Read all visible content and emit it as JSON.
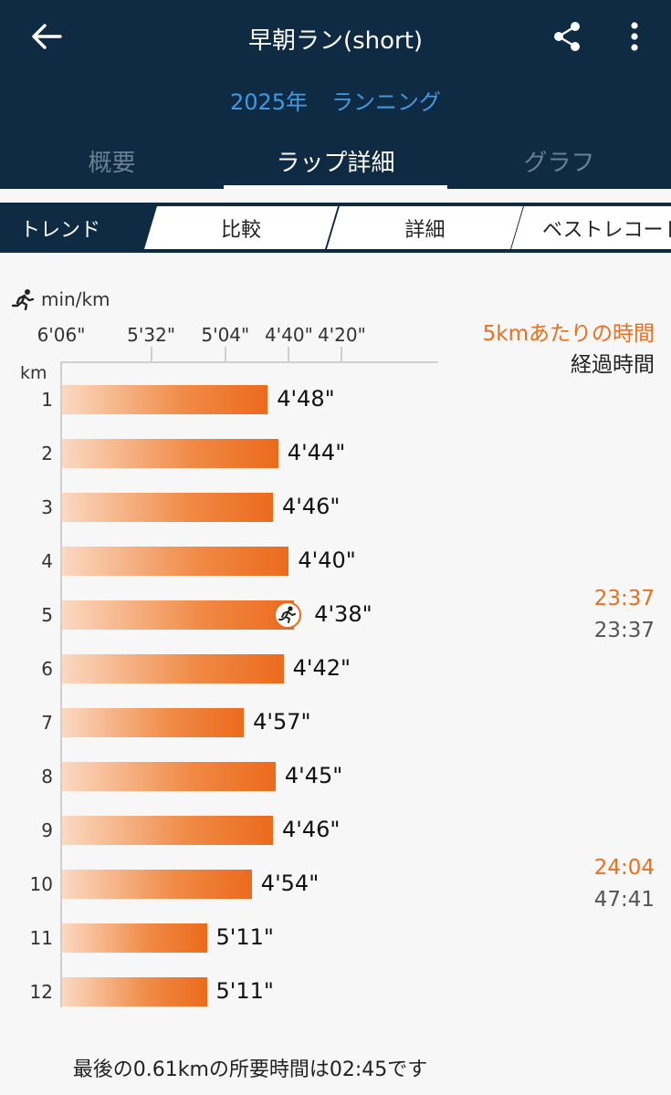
{
  "header": {
    "title": "早朝ラン(short)",
    "subtitle_year": "2025年",
    "subtitle_activity": "ランニング",
    "icons": {
      "back": "arrow-left-icon",
      "share": "share-icon",
      "more": "more-vertical-icon"
    }
  },
  "tabs": [
    {
      "label": "概要",
      "active": false
    },
    {
      "label": "ラップ詳細",
      "active": true
    },
    {
      "label": "グラフ",
      "active": false
    }
  ],
  "segments": [
    {
      "label": "トレンド",
      "active": true
    },
    {
      "label": "比較",
      "active": false
    },
    {
      "label": "詳細",
      "active": false
    },
    {
      "label": "ベストレコード",
      "active": false
    }
  ],
  "chart_data": {
    "type": "bar",
    "orientation": "horizontal",
    "x_unit": "min/km",
    "y_unit": "km",
    "x_ticks": [
      "6'06\"",
      "5'32\"",
      "5'04\"",
      "4'40\"",
      "4'20\""
    ],
    "x_tick_seconds": [
      366,
      332,
      304,
      280,
      260
    ],
    "x_reversed": true,
    "categories": [
      "1",
      "2",
      "3",
      "4",
      "5",
      "6",
      "7",
      "8",
      "9",
      "10",
      "11",
      "12"
    ],
    "values_label": [
      "4'48\"",
      "4'44\"",
      "4'46\"",
      "4'40\"",
      "4'38\"",
      "4'42\"",
      "4'57\"",
      "4'45\"",
      "4'46\"",
      "4'54\"",
      "5'11\"",
      "5'11\""
    ],
    "values_seconds": [
      288,
      284,
      286,
      280,
      278,
      282,
      297,
      285,
      286,
      294,
      311,
      311
    ],
    "fastest_index": 4,
    "legend": {
      "split": "5kmあたりの時間",
      "elapsed": "経過時間"
    },
    "split_markers": [
      {
        "km": "5",
        "split": "23:37",
        "elapsed": "23:37"
      },
      {
        "km": "10",
        "split": "24:04",
        "elapsed": "47:41"
      }
    ],
    "colors": {
      "bar_start": "#fbd9c2",
      "bar_end": "#ec6a1c",
      "split_text": "#e8701f"
    }
  },
  "footer": {
    "note": "最後の0.61kmの所要時間は02:45です"
  }
}
